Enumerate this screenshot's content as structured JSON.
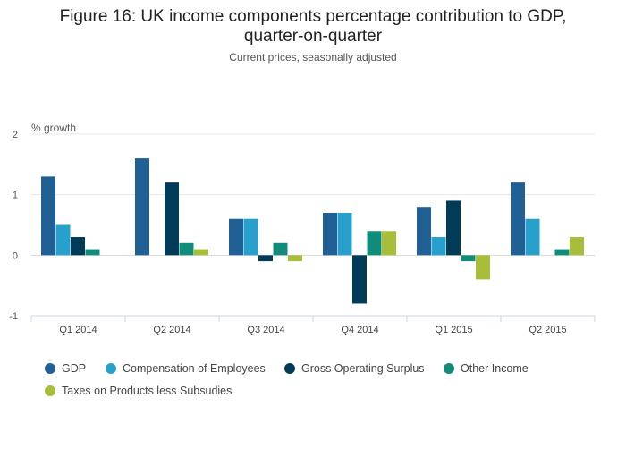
{
  "chart_data": {
    "type": "bar",
    "title_line1": "Figure 16: UK income components percentage contribution to GDP,",
    "title_line2": "quarter-on-quarter",
    "subtitle": "Current prices, seasonally adjusted",
    "ylabel": "% growth",
    "xlabel": "",
    "ylim": [
      -1,
      2
    ],
    "yticks": [
      2,
      1,
      0,
      -1
    ],
    "grid": true,
    "legend_position": "bottom",
    "categories": [
      "Q1 2014",
      "Q2 2014",
      "Q3 2014",
      "Q4 2014",
      "Q1 2015",
      "Q2 2015"
    ],
    "series": [
      {
        "name": "GDP",
        "color": "#206095",
        "values": [
          1.3,
          1.6,
          0.6,
          0.7,
          0.8,
          1.2
        ]
      },
      {
        "name": "Compensation of Employees",
        "color": "#27a0cc",
        "values": [
          0.5,
          0.0,
          0.6,
          0.7,
          0.3,
          0.6
        ]
      },
      {
        "name": "Gross Operating Surplus",
        "color": "#003c57",
        "values": [
          0.3,
          1.2,
          -0.1,
          -0.8,
          0.9,
          0.0
        ]
      },
      {
        "name": "Other Income",
        "color": "#118c7b",
        "values": [
          0.1,
          0.2,
          0.2,
          0.4,
          -0.1,
          0.1
        ]
      },
      {
        "name": "Taxes on Products less Subsudies",
        "color": "#a8bd3a",
        "values": [
          0.0,
          0.1,
          -0.1,
          0.4,
          -0.4,
          0.3
        ]
      }
    ]
  }
}
